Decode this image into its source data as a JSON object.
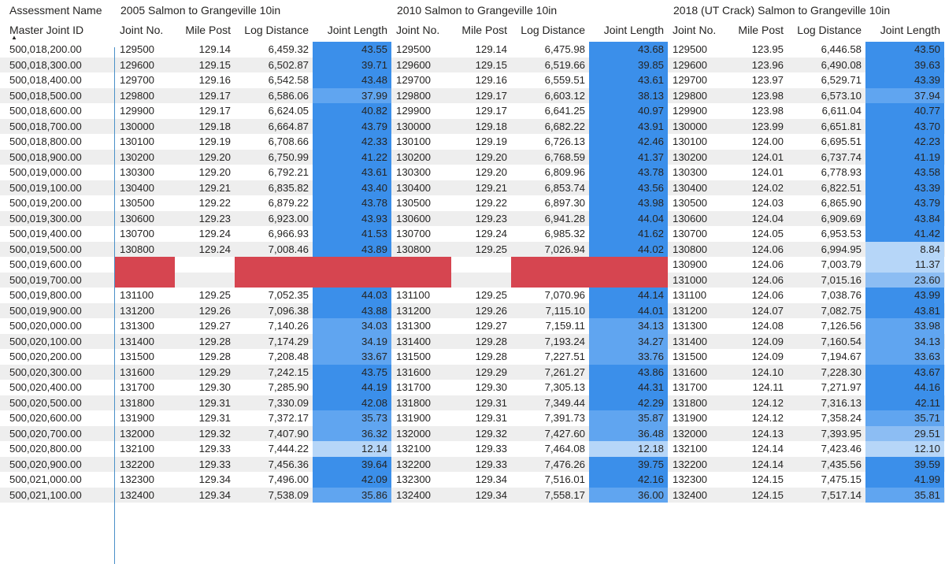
{
  "header": {
    "row_label_col": "Assessment Name",
    "row_id_col": "Master Joint ID",
    "groups": [
      "2005 Salmon to Grangeville 10in",
      "2010 Salmon to Grangeville 10in",
      "2018 (UT Crack) Salmon to Grangeville 10in"
    ],
    "sub_columns": [
      "Joint No.",
      "Mile Post",
      "Log Distance",
      "Joint Length"
    ]
  },
  "colors": {
    "blue_dark": "#3b8fea",
    "blue_mid": "#60a5f0",
    "blue_light": "#b6d6f8",
    "red_missing": "#d64550",
    "alt_row": "#eeeeee"
  },
  "rows": [
    {
      "id": "500,018,200.00",
      "g": [
        [
          "129500",
          "129.14",
          "6,459.32",
          "43.55"
        ],
        [
          "129500",
          "129.14",
          "6,475.98",
          "43.68"
        ],
        [
          "129500",
          "123.95",
          "6,446.58",
          "43.50"
        ]
      ]
    },
    {
      "id": "500,018,300.00",
      "g": [
        [
          "129600",
          "129.15",
          "6,502.87",
          "39.71"
        ],
        [
          "129600",
          "129.15",
          "6,519.66",
          "39.85"
        ],
        [
          "129600",
          "123.96",
          "6,490.08",
          "39.63"
        ]
      ]
    },
    {
      "id": "500,018,400.00",
      "g": [
        [
          "129700",
          "129.16",
          "6,542.58",
          "43.48"
        ],
        [
          "129700",
          "129.16",
          "6,559.51",
          "43.61"
        ],
        [
          "129700",
          "123.97",
          "6,529.71",
          "43.39"
        ]
      ]
    },
    {
      "id": "500,018,500.00",
      "g": [
        [
          "129800",
          "129.17",
          "6,586.06",
          "37.99"
        ],
        [
          "129800",
          "129.17",
          "6,603.12",
          "38.13"
        ],
        [
          "129800",
          "123.98",
          "6,573.10",
          "37.94"
        ]
      ]
    },
    {
      "id": "500,018,600.00",
      "g": [
        [
          "129900",
          "129.17",
          "6,624.05",
          "40.82"
        ],
        [
          "129900",
          "129.17",
          "6,641.25",
          "40.97"
        ],
        [
          "129900",
          "123.98",
          "6,611.04",
          "40.77"
        ]
      ]
    },
    {
      "id": "500,018,700.00",
      "g": [
        [
          "130000",
          "129.18",
          "6,664.87",
          "43.79"
        ],
        [
          "130000",
          "129.18",
          "6,682.22",
          "43.91"
        ],
        [
          "130000",
          "123.99",
          "6,651.81",
          "43.70"
        ]
      ]
    },
    {
      "id": "500,018,800.00",
      "g": [
        [
          "130100",
          "129.19",
          "6,708.66",
          "42.33"
        ],
        [
          "130100",
          "129.19",
          "6,726.13",
          "42.46"
        ],
        [
          "130100",
          "124.00",
          "6,695.51",
          "42.23"
        ]
      ]
    },
    {
      "id": "500,018,900.00",
      "g": [
        [
          "130200",
          "129.20",
          "6,750.99",
          "41.22"
        ],
        [
          "130200",
          "129.20",
          "6,768.59",
          "41.37"
        ],
        [
          "130200",
          "124.01",
          "6,737.74",
          "41.19"
        ]
      ]
    },
    {
      "id": "500,019,000.00",
      "g": [
        [
          "130300",
          "129.20",
          "6,792.21",
          "43.61"
        ],
        [
          "130300",
          "129.20",
          "6,809.96",
          "43.78"
        ],
        [
          "130300",
          "124.01",
          "6,778.93",
          "43.58"
        ]
      ]
    },
    {
      "id": "500,019,100.00",
      "g": [
        [
          "130400",
          "129.21",
          "6,835.82",
          "43.40"
        ],
        [
          "130400",
          "129.21",
          "6,853.74",
          "43.56"
        ],
        [
          "130400",
          "124.02",
          "6,822.51",
          "43.39"
        ]
      ]
    },
    {
      "id": "500,019,200.00",
      "g": [
        [
          "130500",
          "129.22",
          "6,879.22",
          "43.78"
        ],
        [
          "130500",
          "129.22",
          "6,897.30",
          "43.98"
        ],
        [
          "130500",
          "124.03",
          "6,865.90",
          "43.79"
        ]
      ]
    },
    {
      "id": "500,019,300.00",
      "g": [
        [
          "130600",
          "129.23",
          "6,923.00",
          "43.93"
        ],
        [
          "130600",
          "129.23",
          "6,941.28",
          "44.04"
        ],
        [
          "130600",
          "124.04",
          "6,909.69",
          "43.84"
        ]
      ]
    },
    {
      "id": "500,019,400.00",
      "g": [
        [
          "130700",
          "129.24",
          "6,966.93",
          "41.53"
        ],
        [
          "130700",
          "129.24",
          "6,985.32",
          "41.62"
        ],
        [
          "130700",
          "124.05",
          "6,953.53",
          "41.42"
        ]
      ]
    },
    {
      "id": "500,019,500.00",
      "g": [
        [
          "130800",
          "129.24",
          "7,008.46",
          "43.89"
        ],
        [
          "130800",
          "129.25",
          "7,026.94",
          "44.02"
        ],
        [
          "130800",
          "124.06",
          "6,994.95",
          "8.84"
        ]
      ]
    },
    {
      "id": "500,019,600.00",
      "missing": [
        true,
        true
      ],
      "g": [
        [
          "",
          "",
          "",
          ""
        ],
        [
          "",
          "",
          "",
          ""
        ],
        [
          "130900",
          "124.06",
          "7,003.79",
          "11.37"
        ]
      ]
    },
    {
      "id": "500,019,700.00",
      "missing": [
        true,
        true
      ],
      "g": [
        [
          "",
          "",
          "",
          ""
        ],
        [
          "",
          "",
          "",
          ""
        ],
        [
          "131000",
          "124.06",
          "7,015.16",
          "23.60"
        ]
      ]
    },
    {
      "id": "500,019,800.00",
      "g": [
        [
          "131100",
          "129.25",
          "7,052.35",
          "44.03"
        ],
        [
          "131100",
          "129.25",
          "7,070.96",
          "44.14"
        ],
        [
          "131100",
          "124.06",
          "7,038.76",
          "43.99"
        ]
      ]
    },
    {
      "id": "500,019,900.00",
      "g": [
        [
          "131200",
          "129.26",
          "7,096.38",
          "43.88"
        ],
        [
          "131200",
          "129.26",
          "7,115.10",
          "44.01"
        ],
        [
          "131200",
          "124.07",
          "7,082.75",
          "43.81"
        ]
      ]
    },
    {
      "id": "500,020,000.00",
      "g": [
        [
          "131300",
          "129.27",
          "7,140.26",
          "34.03"
        ],
        [
          "131300",
          "129.27",
          "7,159.11",
          "34.13"
        ],
        [
          "131300",
          "124.08",
          "7,126.56",
          "33.98"
        ]
      ]
    },
    {
      "id": "500,020,100.00",
      "g": [
        [
          "131400",
          "129.28",
          "7,174.29",
          "34.19"
        ],
        [
          "131400",
          "129.28",
          "7,193.24",
          "34.27"
        ],
        [
          "131400",
          "124.09",
          "7,160.54",
          "34.13"
        ]
      ]
    },
    {
      "id": "500,020,200.00",
      "g": [
        [
          "131500",
          "129.28",
          "7,208.48",
          "33.67"
        ],
        [
          "131500",
          "129.28",
          "7,227.51",
          "33.76"
        ],
        [
          "131500",
          "124.09",
          "7,194.67",
          "33.63"
        ]
      ]
    },
    {
      "id": "500,020,300.00",
      "g": [
        [
          "131600",
          "129.29",
          "7,242.15",
          "43.75"
        ],
        [
          "131600",
          "129.29",
          "7,261.27",
          "43.86"
        ],
        [
          "131600",
          "124.10",
          "7,228.30",
          "43.67"
        ]
      ]
    },
    {
      "id": "500,020,400.00",
      "g": [
        [
          "131700",
          "129.30",
          "7,285.90",
          "44.19"
        ],
        [
          "131700",
          "129.30",
          "7,305.13",
          "44.31"
        ],
        [
          "131700",
          "124.11",
          "7,271.97",
          "44.16"
        ]
      ]
    },
    {
      "id": "500,020,500.00",
      "g": [
        [
          "131800",
          "129.31",
          "7,330.09",
          "42.08"
        ],
        [
          "131800",
          "129.31",
          "7,349.44",
          "42.29"
        ],
        [
          "131800",
          "124.12",
          "7,316.13",
          "42.11"
        ]
      ]
    },
    {
      "id": "500,020,600.00",
      "g": [
        [
          "131900",
          "129.31",
          "7,372.17",
          "35.73"
        ],
        [
          "131900",
          "129.31",
          "7,391.73",
          "35.87"
        ],
        [
          "131900",
          "124.12",
          "7,358.24",
          "35.71"
        ]
      ]
    },
    {
      "id": "500,020,700.00",
      "g": [
        [
          "132000",
          "129.32",
          "7,407.90",
          "36.32"
        ],
        [
          "132000",
          "129.32",
          "7,427.60",
          "36.48"
        ],
        [
          "132000",
          "124.13",
          "7,393.95",
          "29.51"
        ]
      ]
    },
    {
      "id": "500,020,800.00",
      "g": [
        [
          "132100",
          "129.33",
          "7,444.22",
          "12.14"
        ],
        [
          "132100",
          "129.33",
          "7,464.08",
          "12.18"
        ],
        [
          "132100",
          "124.14",
          "7,423.46",
          "12.10"
        ]
      ]
    },
    {
      "id": "500,020,900.00",
      "g": [
        [
          "132200",
          "129.33",
          "7,456.36",
          "39.64"
        ],
        [
          "132200",
          "129.33",
          "7,476.26",
          "39.75"
        ],
        [
          "132200",
          "124.14",
          "7,435.56",
          "39.59"
        ]
      ]
    },
    {
      "id": "500,021,000.00",
      "g": [
        [
          "132300",
          "129.34",
          "7,496.00",
          "42.09"
        ],
        [
          "132300",
          "129.34",
          "7,516.01",
          "42.16"
        ],
        [
          "132300",
          "124.15",
          "7,475.15",
          "41.99"
        ]
      ]
    },
    {
      "id": "500,021,100.00",
      "g": [
        [
          "132400",
          "129.34",
          "7,538.09",
          "35.86"
        ],
        [
          "132400",
          "129.34",
          "7,558.17",
          "36.00"
        ],
        [
          "132400",
          "124.15",
          "7,517.14",
          "35.81"
        ]
      ]
    }
  ]
}
